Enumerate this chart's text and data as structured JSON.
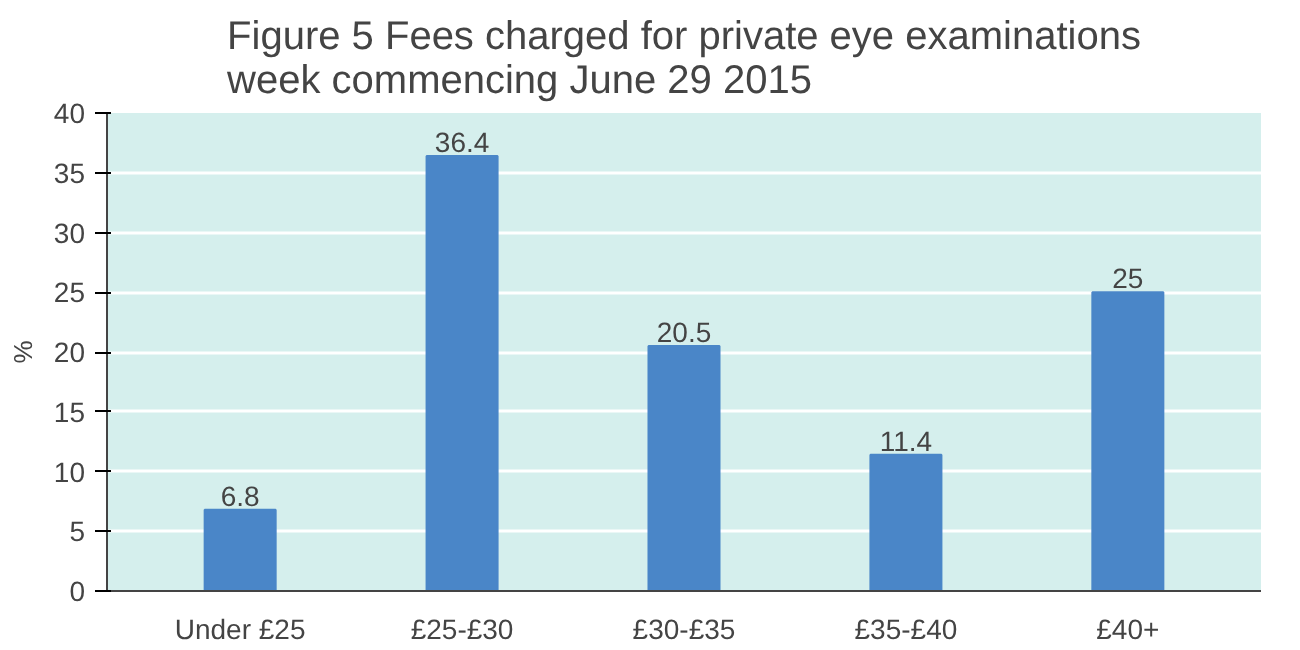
{
  "chart_data": {
    "type": "bar",
    "title": "Figure 5 Fees charged for private eye examinations\nweek commencing June 29 2015",
    "ylabel": "%",
    "categories": [
      "Under £25",
      "£25-£30",
      "£30-£35",
      "£35-£40",
      "£40+"
    ],
    "values": [
      6.8,
      36.4,
      20.5,
      11.4,
      25
    ],
    "color": "#4a86c8",
    "ylim": [
      0,
      40
    ],
    "yticks": [
      0,
      5,
      10,
      15,
      20,
      25,
      30,
      35,
      40
    ],
    "grid": "y",
    "data_labels": true
  }
}
